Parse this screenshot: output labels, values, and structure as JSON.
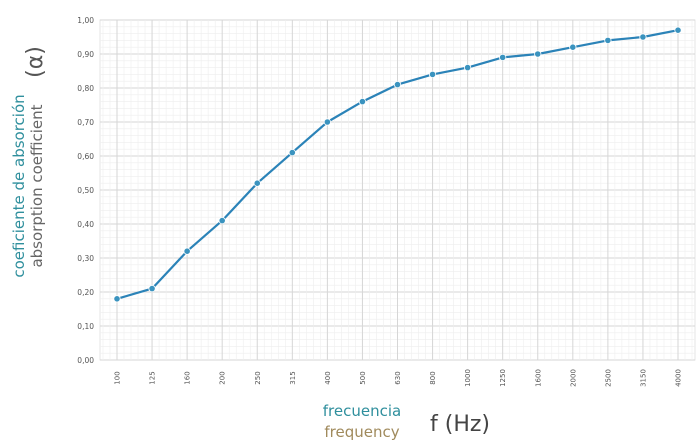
{
  "chart_data": {
    "type": "line",
    "categories": [
      "100",
      "125",
      "160",
      "200",
      "250",
      "315",
      "400",
      "500",
      "630",
      "800",
      "1000",
      "1250",
      "1600",
      "2000",
      "2500",
      "3150",
      "4000"
    ],
    "series": [
      {
        "values": [
          0.18,
          0.21,
          0.32,
          0.41,
          0.52,
          0.61,
          0.7,
          0.76,
          0.81,
          0.84,
          0.86,
          0.89,
          0.9,
          0.92,
          0.94,
          0.95,
          0.97
        ]
      }
    ],
    "yticks": [
      "0,00",
      "0,10",
      "0,20",
      "0,30",
      "0,40",
      "0,50",
      "0,60",
      "0,70",
      "0,80",
      "0,90",
      "1,00"
    ],
    "ylim": [
      0,
      1
    ],
    "ylabel": {
      "line1": "coeficiente de absorción",
      "line2": "absorption coefficient",
      "symbol": "(α)"
    },
    "xlabel": {
      "line1": "frecuencia",
      "line2": "frequency",
      "unit": "f (Hz)"
    },
    "grid": true,
    "line_color": "#2b83b8",
    "marker_color": "#3a93bf"
  }
}
